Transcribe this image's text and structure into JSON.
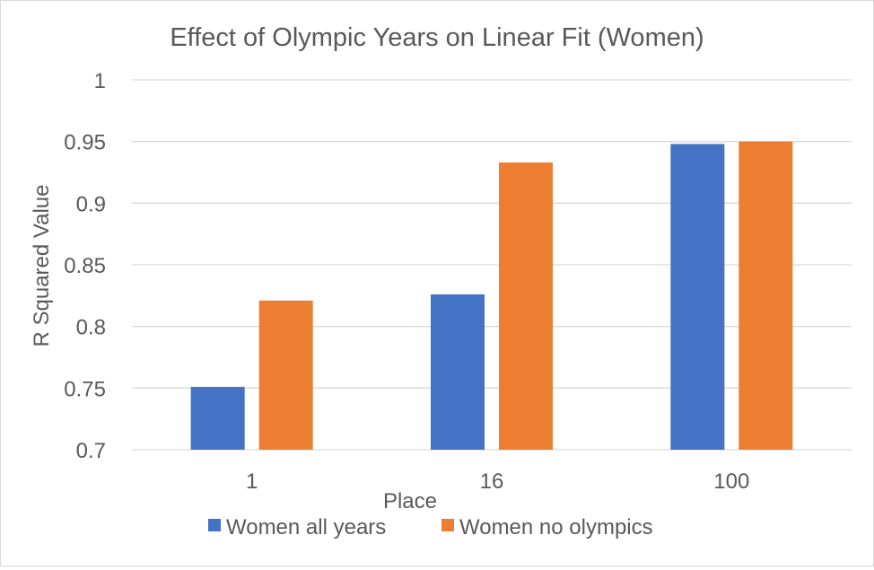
{
  "chart_data": {
    "type": "bar",
    "title": "Effect of Olympic Years on Linear Fit (Women)",
    "xlabel": "Place",
    "ylabel": "R Squared Value",
    "categories": [
      "1",
      "16",
      "100"
    ],
    "series": [
      {
        "name": "Women all years",
        "values": [
          0.751,
          0.826,
          0.948
        ],
        "color": "#4472C4"
      },
      {
        "name": "Women no olympics",
        "values": [
          0.821,
          0.933,
          0.95
        ],
        "color": "#ED7D31"
      }
    ],
    "ylim": [
      0.7,
      1.0
    ],
    "yticks": [
      "0.7",
      "0.75",
      "0.8",
      "0.85",
      "0.9",
      "0.95",
      "1"
    ],
    "grid": true,
    "legend": "bottom",
    "gridline_color": "#D9D9D9",
    "text_color": "#595959"
  }
}
